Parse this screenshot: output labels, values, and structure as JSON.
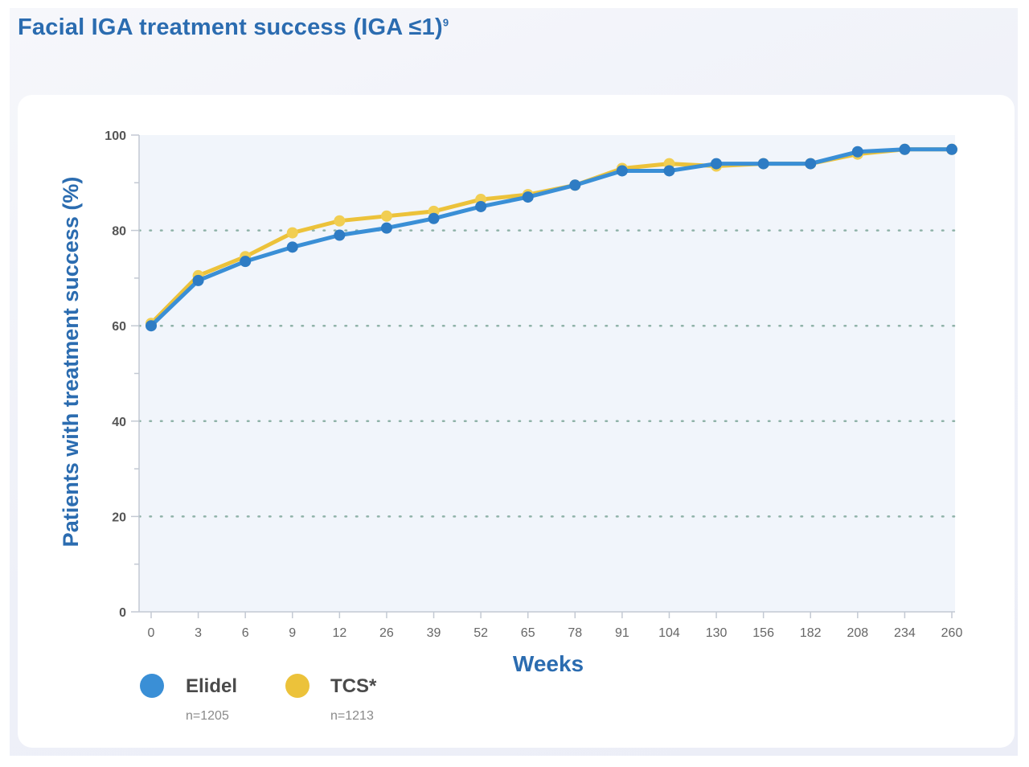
{
  "header": {
    "title": "Facial IGA treatment success (IGA ≤1)",
    "title_sup": "9"
  },
  "chart_data": {
    "type": "line",
    "title": "Facial IGA treatment success (IGA ≤1)9",
    "xlabel": "Weeks",
    "ylabel": "Patients with treatment success (%)",
    "ylim": [
      0,
      100
    ],
    "yticks": [
      0,
      20,
      40,
      60,
      80,
      100
    ],
    "grid": "horizontal dotted at 20, 40, 60, 80",
    "categories": [
      "0",
      "3",
      "6",
      "9",
      "12",
      "26",
      "39",
      "52",
      "65",
      "78",
      "91",
      "104",
      "130",
      "156",
      "182",
      "208",
      "234",
      "260"
    ],
    "series": [
      {
        "name": "Elidel",
        "n_label": "n=1205",
        "color": "#3a8fd6",
        "marker_color": "#2e7cc4",
        "values": [
          60,
          69.5,
          73.5,
          76.5,
          79,
          80.5,
          82.5,
          85,
          87,
          89.5,
          92.5,
          92.5,
          94,
          94,
          94,
          96.5,
          97,
          97
        ]
      },
      {
        "name": "TCS*",
        "n_label": "n=1213",
        "color": "#ecc23a",
        "marker_color": "#f1ce52",
        "values": [
          60.5,
          70.5,
          74.5,
          79.5,
          82,
          83,
          84,
          86.5,
          87.5,
          89.5,
          93,
          94,
          93.5,
          94,
          94,
          96,
          97,
          97
        ]
      }
    ],
    "legend_position": "bottom-left"
  },
  "colors": {
    "title": "#2b6cb0",
    "axis_label": "#2b6cb0",
    "plot_bg": "#f1f5fb",
    "grid": "#8fb2a8"
  }
}
